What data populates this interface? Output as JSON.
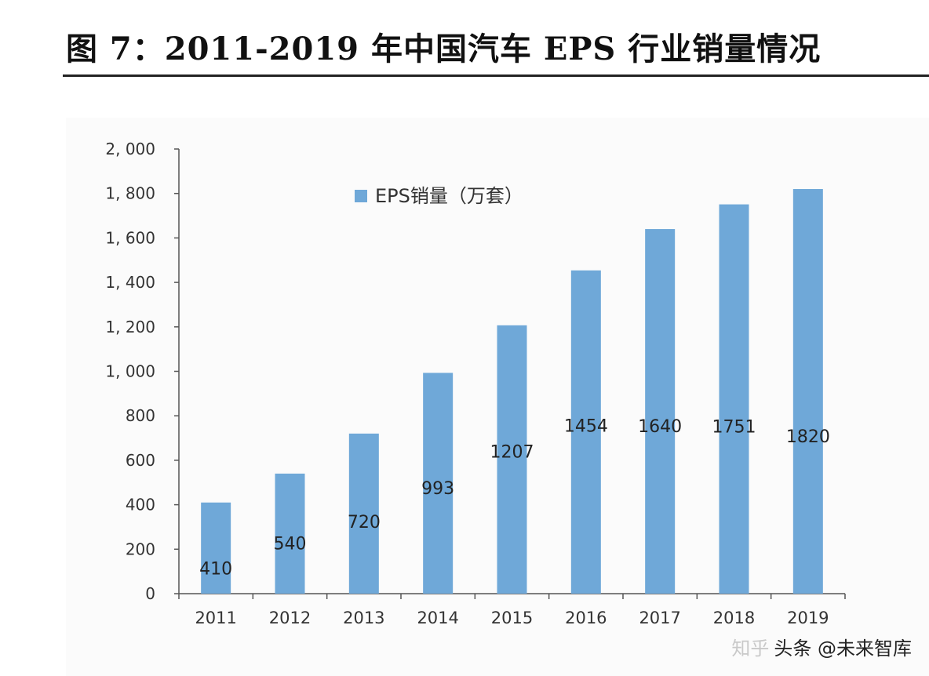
{
  "figure_title": "图 7：2011-2019 年中国汽车 EPS 行业销量情况",
  "watermark": {
    "ghost_text": "知乎",
    "text": "头条 @未来智库"
  },
  "chart_data": {
    "type": "bar",
    "title": "图 7：2011-2019 年中国汽车 EPS 行业销量情况",
    "categories": [
      "2011",
      "2012",
      "2013",
      "2014",
      "2015",
      "2016",
      "2017",
      "2018",
      "2019"
    ],
    "series": [
      {
        "name": "EPS销量（万套）",
        "values": [
          410,
          540,
          720,
          993,
          1207,
          1454,
          1640,
          1751,
          1820
        ],
        "data_labels": [
          "410",
          "540",
          "720",
          "993",
          "1207",
          "1454",
          "1640",
          "1751",
          "1820"
        ],
        "color": "#6fa8d8"
      }
    ],
    "ylim": [
      0,
      2000
    ],
    "yticks": [
      0,
      200,
      400,
      600,
      800,
      1000,
      1200,
      1400,
      1600,
      1800,
      2000
    ],
    "ytick_labels": [
      "0",
      "200",
      "400",
      "600",
      "800",
      "1, 000",
      "1, 200",
      "1, 400",
      "1, 600",
      "1, 800",
      "2, 000"
    ],
    "xlabel": "",
    "ylabel": "",
    "grid": false,
    "legend": "top-center",
    "axis_color": "#555555",
    "label_color": "#333333"
  }
}
